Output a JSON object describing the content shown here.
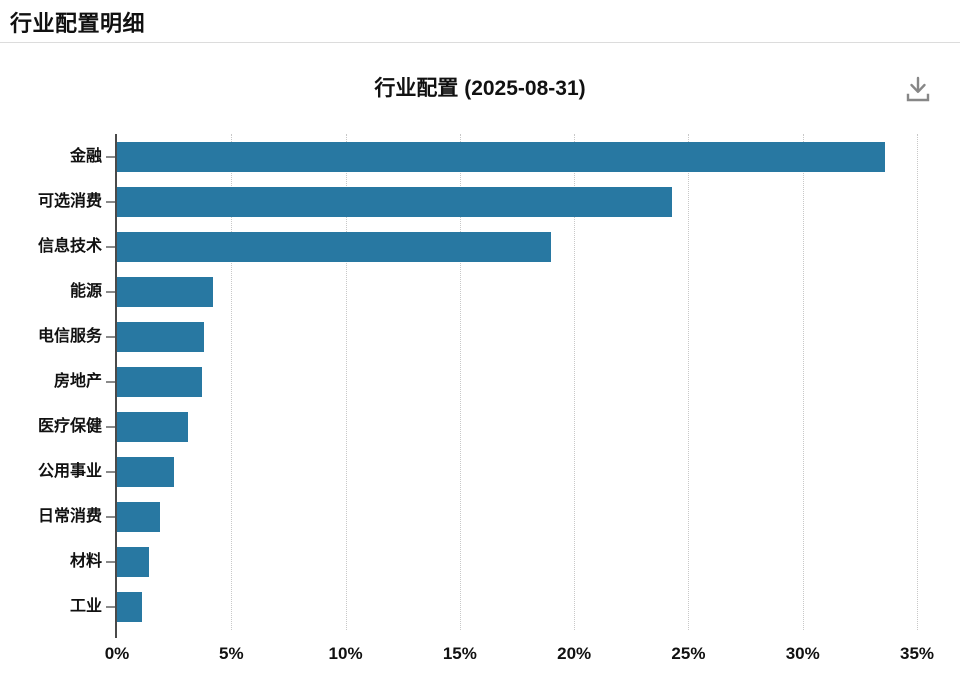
{
  "page": {
    "header_title": "行业配置明细"
  },
  "chart": {
    "title": "行业配置 (2025-08-31)",
    "download_icon": "download-icon"
  },
  "chart_data": {
    "type": "bar",
    "orientation": "horizontal",
    "title": "行业配置 (2025-08-31)",
    "categories": [
      "金融",
      "可选消费",
      "信息技术",
      "能源",
      "电信服务",
      "房地产",
      "医疗保健",
      "公用事业",
      "日常消费",
      "材料",
      "工业"
    ],
    "values": [
      33.6,
      24.3,
      19.0,
      4.2,
      3.8,
      3.7,
      3.1,
      2.5,
      1.9,
      1.4,
      1.1
    ],
    "unit": "%",
    "xlabel": "",
    "ylabel": "",
    "xlim": [
      0,
      35
    ],
    "x_tick_step": 5,
    "x_tick_labels": [
      "0%",
      "5%",
      "10%",
      "15%",
      "20%",
      "25%",
      "30%",
      "35%"
    ],
    "bar_color": "#2878a2",
    "grid": "vertical-dotted",
    "legend": "none"
  }
}
